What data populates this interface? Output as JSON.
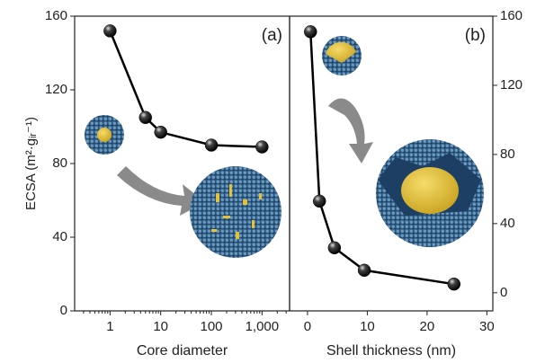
{
  "chart_data": [
    {
      "type": "line",
      "panel_label": "(a)",
      "x_label": "Core diameter",
      "y_label": "ECSA (m²·gᵢᵣ⁻¹)",
      "log_x": true,
      "y_side": "left",
      "color": "#000000",
      "x": [
        1,
        5,
        10,
        100,
        1000
      ],
      "values": [
        152,
        105,
        97,
        90,
        89
      ],
      "xlim": [
        0.2,
        3500
      ],
      "ylim": [
        0,
        160
      ],
      "xticks": [
        1,
        10,
        100,
        {
          "value": 1000,
          "label": "1,000"
        }
      ],
      "yticks": [
        0,
        40,
        80,
        120,
        160
      ]
    },
    {
      "type": "line",
      "panel_label": "(b)",
      "x_label": "Shell thickness (nm)",
      "log_x": false,
      "y_side": "right",
      "color": "#000000",
      "x": [
        0.5,
        2,
        4.5,
        9.5,
        24.5
      ],
      "values": [
        151,
        53,
        26,
        13,
        5
      ],
      "xlim": [
        -3,
        31
      ],
      "ylim": [
        -10.5,
        160
      ],
      "xticks": [
        0,
        10,
        20,
        30
      ],
      "yticks": [
        0,
        40,
        80,
        120,
        160
      ]
    }
  ]
}
